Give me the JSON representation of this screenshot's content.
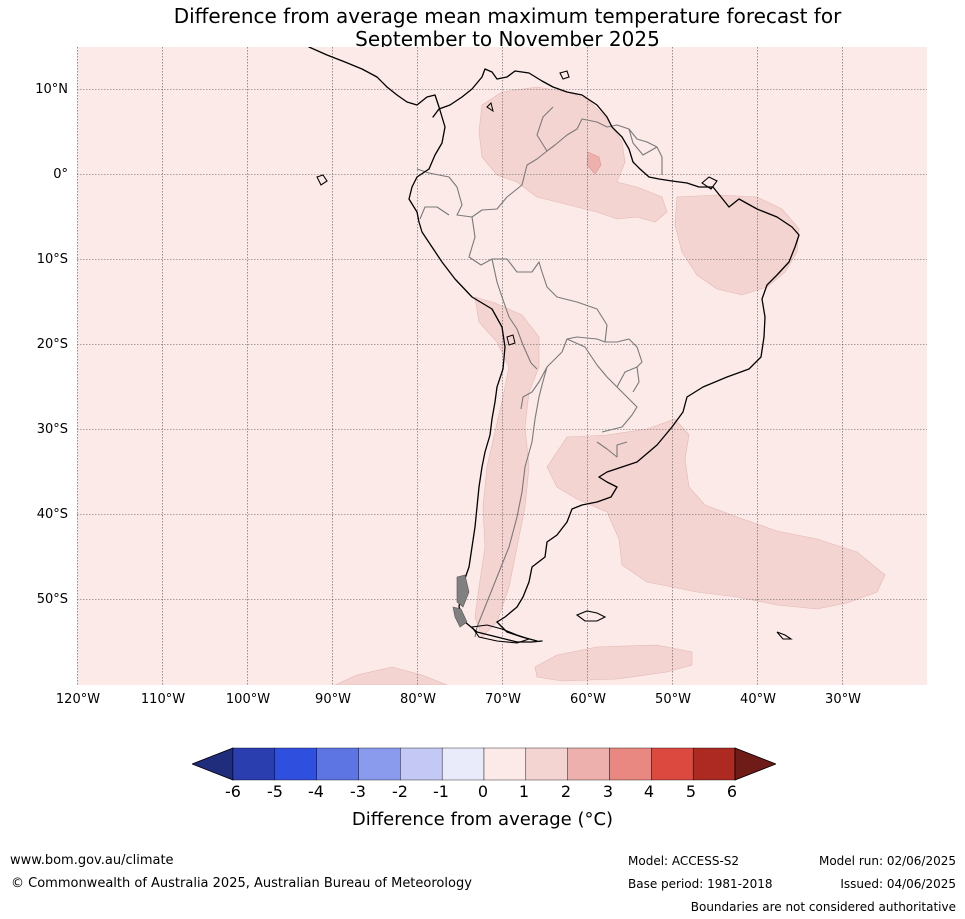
{
  "title": {
    "line1": "Difference from average mean maximum temperature forecast for",
    "line2": "September to November 2025"
  },
  "map": {
    "region": "South America",
    "lat_labels": [
      "10°N",
      "0°",
      "10°S",
      "20°S",
      "30°S",
      "40°S",
      "50°S"
    ],
    "lon_labels": [
      "120°W",
      "110°W",
      "100°W",
      "90°W",
      "80°W",
      "70°W",
      "60°W",
      "50°W",
      "40°W",
      "30°W"
    ],
    "gridlines": true,
    "colors": {
      "background_0_to_1": "#fbeae8",
      "band_1_to_2": "#f4d4d1",
      "band_2_to_3": "#eeb0ad"
    }
  },
  "colorbar": {
    "ticks": [
      "-6",
      "-5",
      "-4",
      "-3",
      "-2",
      "-1",
      "0",
      "1",
      "2",
      "3",
      "4",
      "5",
      "6"
    ],
    "colors": [
      "#202c7c",
      "#2a3eb0",
      "#2f50df",
      "#5d75e3",
      "#8a9aec",
      "#c3c9f4",
      "#e9ebfb",
      "#fbeae8",
      "#f4d4d1",
      "#eeb0ad",
      "#e98881",
      "#dc4a3f",
      "#ad2a22",
      "#6f1b18"
    ],
    "label": "Difference from average (°C)"
  },
  "footer": {
    "website": "www.bom.gov.au/climate",
    "copyright": "© Commonwealth of Australia 2025, Australian Bureau of Meteorology",
    "model": "Model: ACCESS-S2",
    "base_period": "Base period: 1981-2018",
    "model_run": "Model run: 02/06/2025",
    "issued": "Issued: 04/06/2025",
    "disclaimer": "Boundaries are not considered authoritative"
  }
}
